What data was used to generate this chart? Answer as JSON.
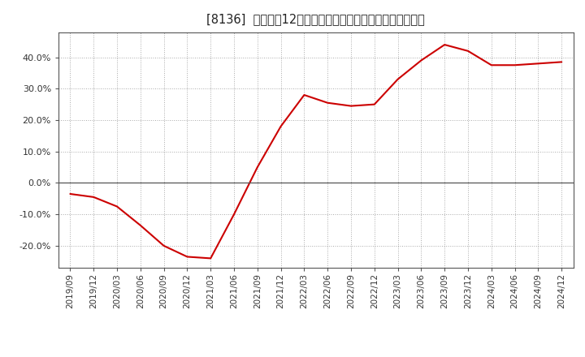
{
  "title": "[8136]  売上高の12か月移動合計の対前年同期増減率の推移",
  "line_color": "#cc0000",
  "background_color": "#ffffff",
  "plot_bg_color": "#ffffff",
  "grid_color": "#aaaaaa",
  "zero_line_color": "#555555",
  "dates": [
    "2019/09",
    "2019/12",
    "2020/03",
    "2020/06",
    "2020/09",
    "2020/12",
    "2021/03",
    "2021/06",
    "2021/09",
    "2021/12",
    "2022/03",
    "2022/06",
    "2022/09",
    "2022/12",
    "2023/03",
    "2023/06",
    "2023/09",
    "2023/12",
    "2024/03",
    "2024/06",
    "2024/09",
    "2024/12"
  ],
  "values": [
    -3.5,
    -4.5,
    -7.5,
    -13.5,
    -20.0,
    -23.5,
    -24.0,
    -10.0,
    5.0,
    18.0,
    28.0,
    25.5,
    24.5,
    25.0,
    33.0,
    39.0,
    44.0,
    42.0,
    37.5,
    37.5,
    38.0,
    38.5
  ],
  "yticks": [
    -20.0,
    -10.0,
    0.0,
    10.0,
    20.0,
    30.0,
    40.0
  ],
  "ylim": [
    -27,
    48
  ],
  "figsize": [
    7.2,
    4.4
  ],
  "dpi": 100
}
